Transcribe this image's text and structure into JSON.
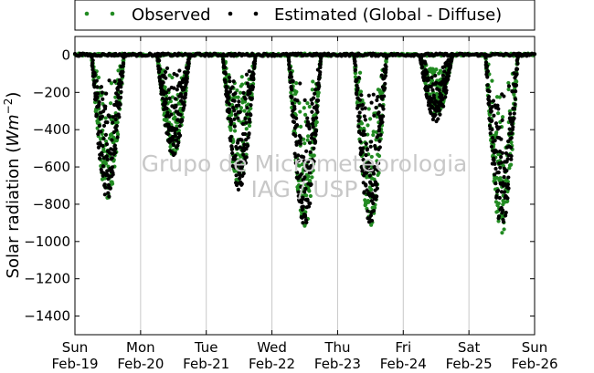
{
  "chart_data": {
    "type": "scatter",
    "ylabel_text": "Solar radiation (",
    "ylabel_math_base": "Wm",
    "ylabel_math_exp": "−2",
    "ylabel_close": ")",
    "ylim": [
      -1500,
      100
    ],
    "yticks": [
      0,
      -200,
      -400,
      -600,
      -800,
      -1000,
      -1200,
      -1400
    ],
    "xlim_days": [
      0,
      7
    ],
    "xtick_days": [
      "Sun",
      "Mon",
      "Tue",
      "Wed",
      "Thu",
      "Fri",
      "Sat",
      "Sun"
    ],
    "xtick_dates": [
      "Feb-19",
      "Feb-20",
      "Feb-21",
      "Feb-22",
      "Feb-23",
      "Feb-24",
      "Feb-25",
      "Feb-26"
    ],
    "vertical_grid": true,
    "legend_position": "top, outside plot",
    "watermark": [
      "Grupo de Micrometeorologia",
      "IAG / USP"
    ],
    "series": [
      {
        "name": "Observed",
        "color": "#228b22",
        "troughs": [
          {
            "date": "Feb-19",
            "min": -780
          },
          {
            "date": "Feb-20",
            "min": -540
          },
          {
            "date": "Feb-21",
            "min": -730
          },
          {
            "date": "Feb-22",
            "min": -930
          },
          {
            "date": "Feb-23",
            "min": -930
          },
          {
            "date": "Feb-24",
            "min": -330
          },
          {
            "date": "Feb-25",
            "min": -960
          }
        ]
      },
      {
        "name": "Estimated (Global - Diffuse)",
        "color": "#000000",
        "troughs": [
          {
            "date": "Feb-19",
            "min": -780
          },
          {
            "date": "Feb-20",
            "min": -540
          },
          {
            "date": "Feb-21",
            "min": -730
          },
          {
            "date": "Feb-22",
            "min": -920
          },
          {
            "date": "Feb-23",
            "min": -920
          },
          {
            "date": "Feb-24",
            "min": -360
          },
          {
            "date": "Feb-25",
            "min": -930
          }
        ]
      }
    ]
  }
}
